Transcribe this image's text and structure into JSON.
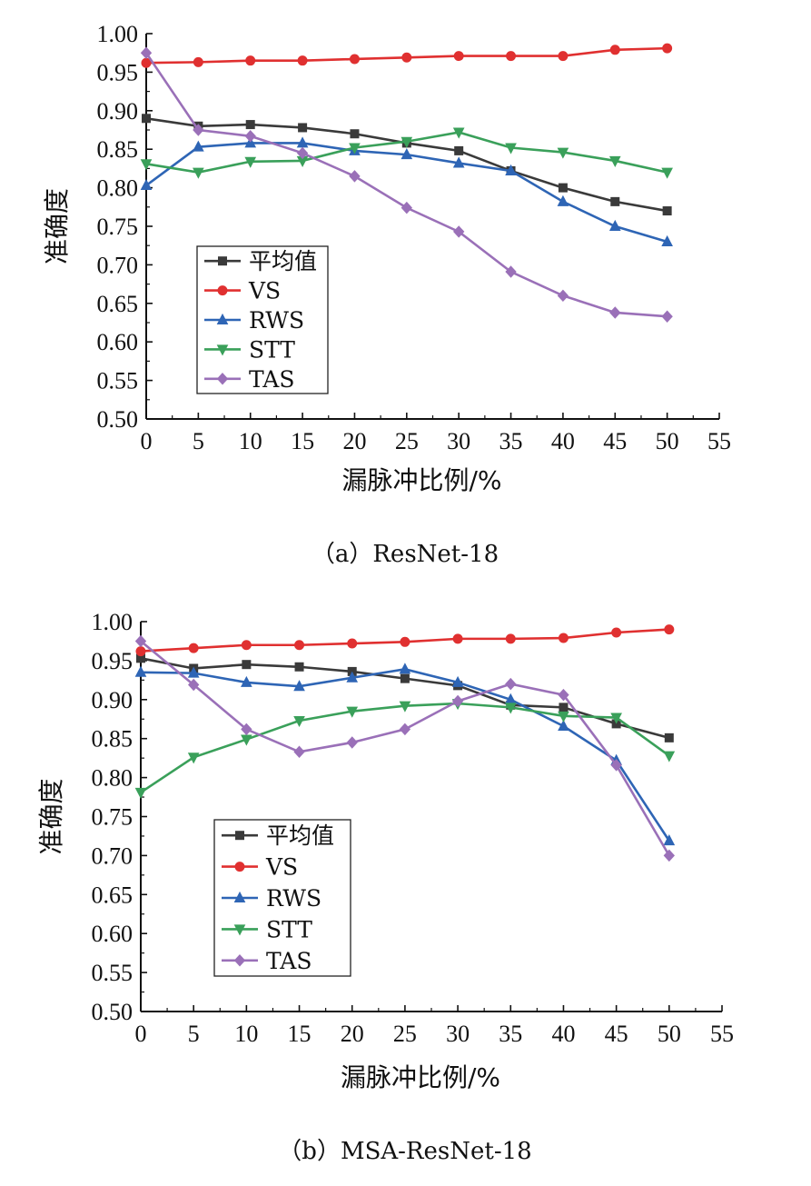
{
  "chart_data": [
    {
      "type": "line",
      "caption": "（a）ResNet-18",
      "xlabel": "漏脉冲比例/%",
      "ylabel": "准确度",
      "xlim": [
        0,
        55
      ],
      "ylim": [
        0.5,
        1.0
      ],
      "x_ticks": [
        "0",
        "5",
        "10",
        "15",
        "20",
        "25",
        "30",
        "35",
        "40",
        "45",
        "50",
        "55"
      ],
      "y_ticks": [
        "0.50",
        "0.55",
        "0.60",
        "0.65",
        "0.70",
        "0.75",
        "0.80",
        "0.85",
        "0.90",
        "0.95",
        "1.00"
      ],
      "x": [
        0,
        5,
        10,
        15,
        20,
        25,
        30,
        35,
        40,
        45,
        50
      ],
      "legend_position": "lower-left",
      "series": [
        {
          "name": "平均值",
          "color": "#3a3a3a",
          "marker": "square",
          "values": [
            0.89,
            0.88,
            0.882,
            0.878,
            0.87,
            0.858,
            0.848,
            0.822,
            0.8,
            0.782,
            0.77
          ]
        },
        {
          "name": "VS",
          "color": "#e03030",
          "marker": "circle",
          "values": [
            0.962,
            0.963,
            0.965,
            0.965,
            0.967,
            0.969,
            0.971,
            0.971,
            0.971,
            0.979,
            0.981
          ]
        },
        {
          "name": "RWS",
          "color": "#2e65b5",
          "marker": "triangle-up",
          "values": [
            0.803,
            0.853,
            0.858,
            0.858,
            0.848,
            0.843,
            0.832,
            0.822,
            0.782,
            0.75,
            0.73
          ]
        },
        {
          "name": "STT",
          "color": "#3aa05a",
          "marker": "triangle-down",
          "values": [
            0.831,
            0.82,
            0.834,
            0.835,
            0.852,
            0.86,
            0.872,
            0.852,
            0.846,
            0.835,
            0.82
          ]
        },
        {
          "name": "TAS",
          "color": "#9a70b8",
          "marker": "diamond",
          "values": [
            0.975,
            0.875,
            0.867,
            0.845,
            0.815,
            0.774,
            0.743,
            0.691,
            0.66,
            0.638,
            0.633
          ]
        }
      ]
    },
    {
      "type": "line",
      "caption": "（b）MSA-ResNet-18",
      "xlabel": "漏脉冲比例/%",
      "ylabel": "准确度",
      "xlim": [
        0,
        55
      ],
      "ylim": [
        0.5,
        1.0
      ],
      "x_ticks": [
        "0",
        "5",
        "10",
        "15",
        "20",
        "25",
        "30",
        "35",
        "40",
        "45",
        "50",
        "55"
      ],
      "y_ticks": [
        "0.50",
        "0.55",
        "0.60",
        "0.65",
        "0.70",
        "0.75",
        "0.80",
        "0.85",
        "0.90",
        "0.95",
        "1.00"
      ],
      "x": [
        0,
        5,
        10,
        15,
        20,
        25,
        30,
        35,
        40,
        45,
        50
      ],
      "legend_position": "lower-left",
      "series": [
        {
          "name": "平均值",
          "color": "#3a3a3a",
          "marker": "square",
          "values": [
            0.953,
            0.94,
            0.945,
            0.942,
            0.936,
            0.927,
            0.918,
            0.893,
            0.89,
            0.869,
            0.851
          ]
        },
        {
          "name": "VS",
          "color": "#e03030",
          "marker": "circle",
          "values": [
            0.962,
            0.966,
            0.97,
            0.97,
            0.972,
            0.974,
            0.978,
            0.978,
            0.979,
            0.986,
            0.99
          ]
        },
        {
          "name": "RWS",
          "color": "#2e65b5",
          "marker": "triangle-up",
          "values": [
            0.935,
            0.934,
            0.922,
            0.917,
            0.928,
            0.939,
            0.922,
            0.9,
            0.866,
            0.822,
            0.719
          ]
        },
        {
          "name": "STT",
          "color": "#3aa05a",
          "marker": "triangle-down",
          "values": [
            0.781,
            0.826,
            0.849,
            0.873,
            0.885,
            0.892,
            0.895,
            0.89,
            0.879,
            0.877,
            0.828
          ]
        },
        {
          "name": "TAS",
          "color": "#9a70b8",
          "marker": "diamond",
          "values": [
            0.975,
            0.919,
            0.862,
            0.833,
            0.845,
            0.862,
            0.898,
            0.92,
            0.906,
            0.816,
            0.7
          ]
        }
      ]
    }
  ]
}
